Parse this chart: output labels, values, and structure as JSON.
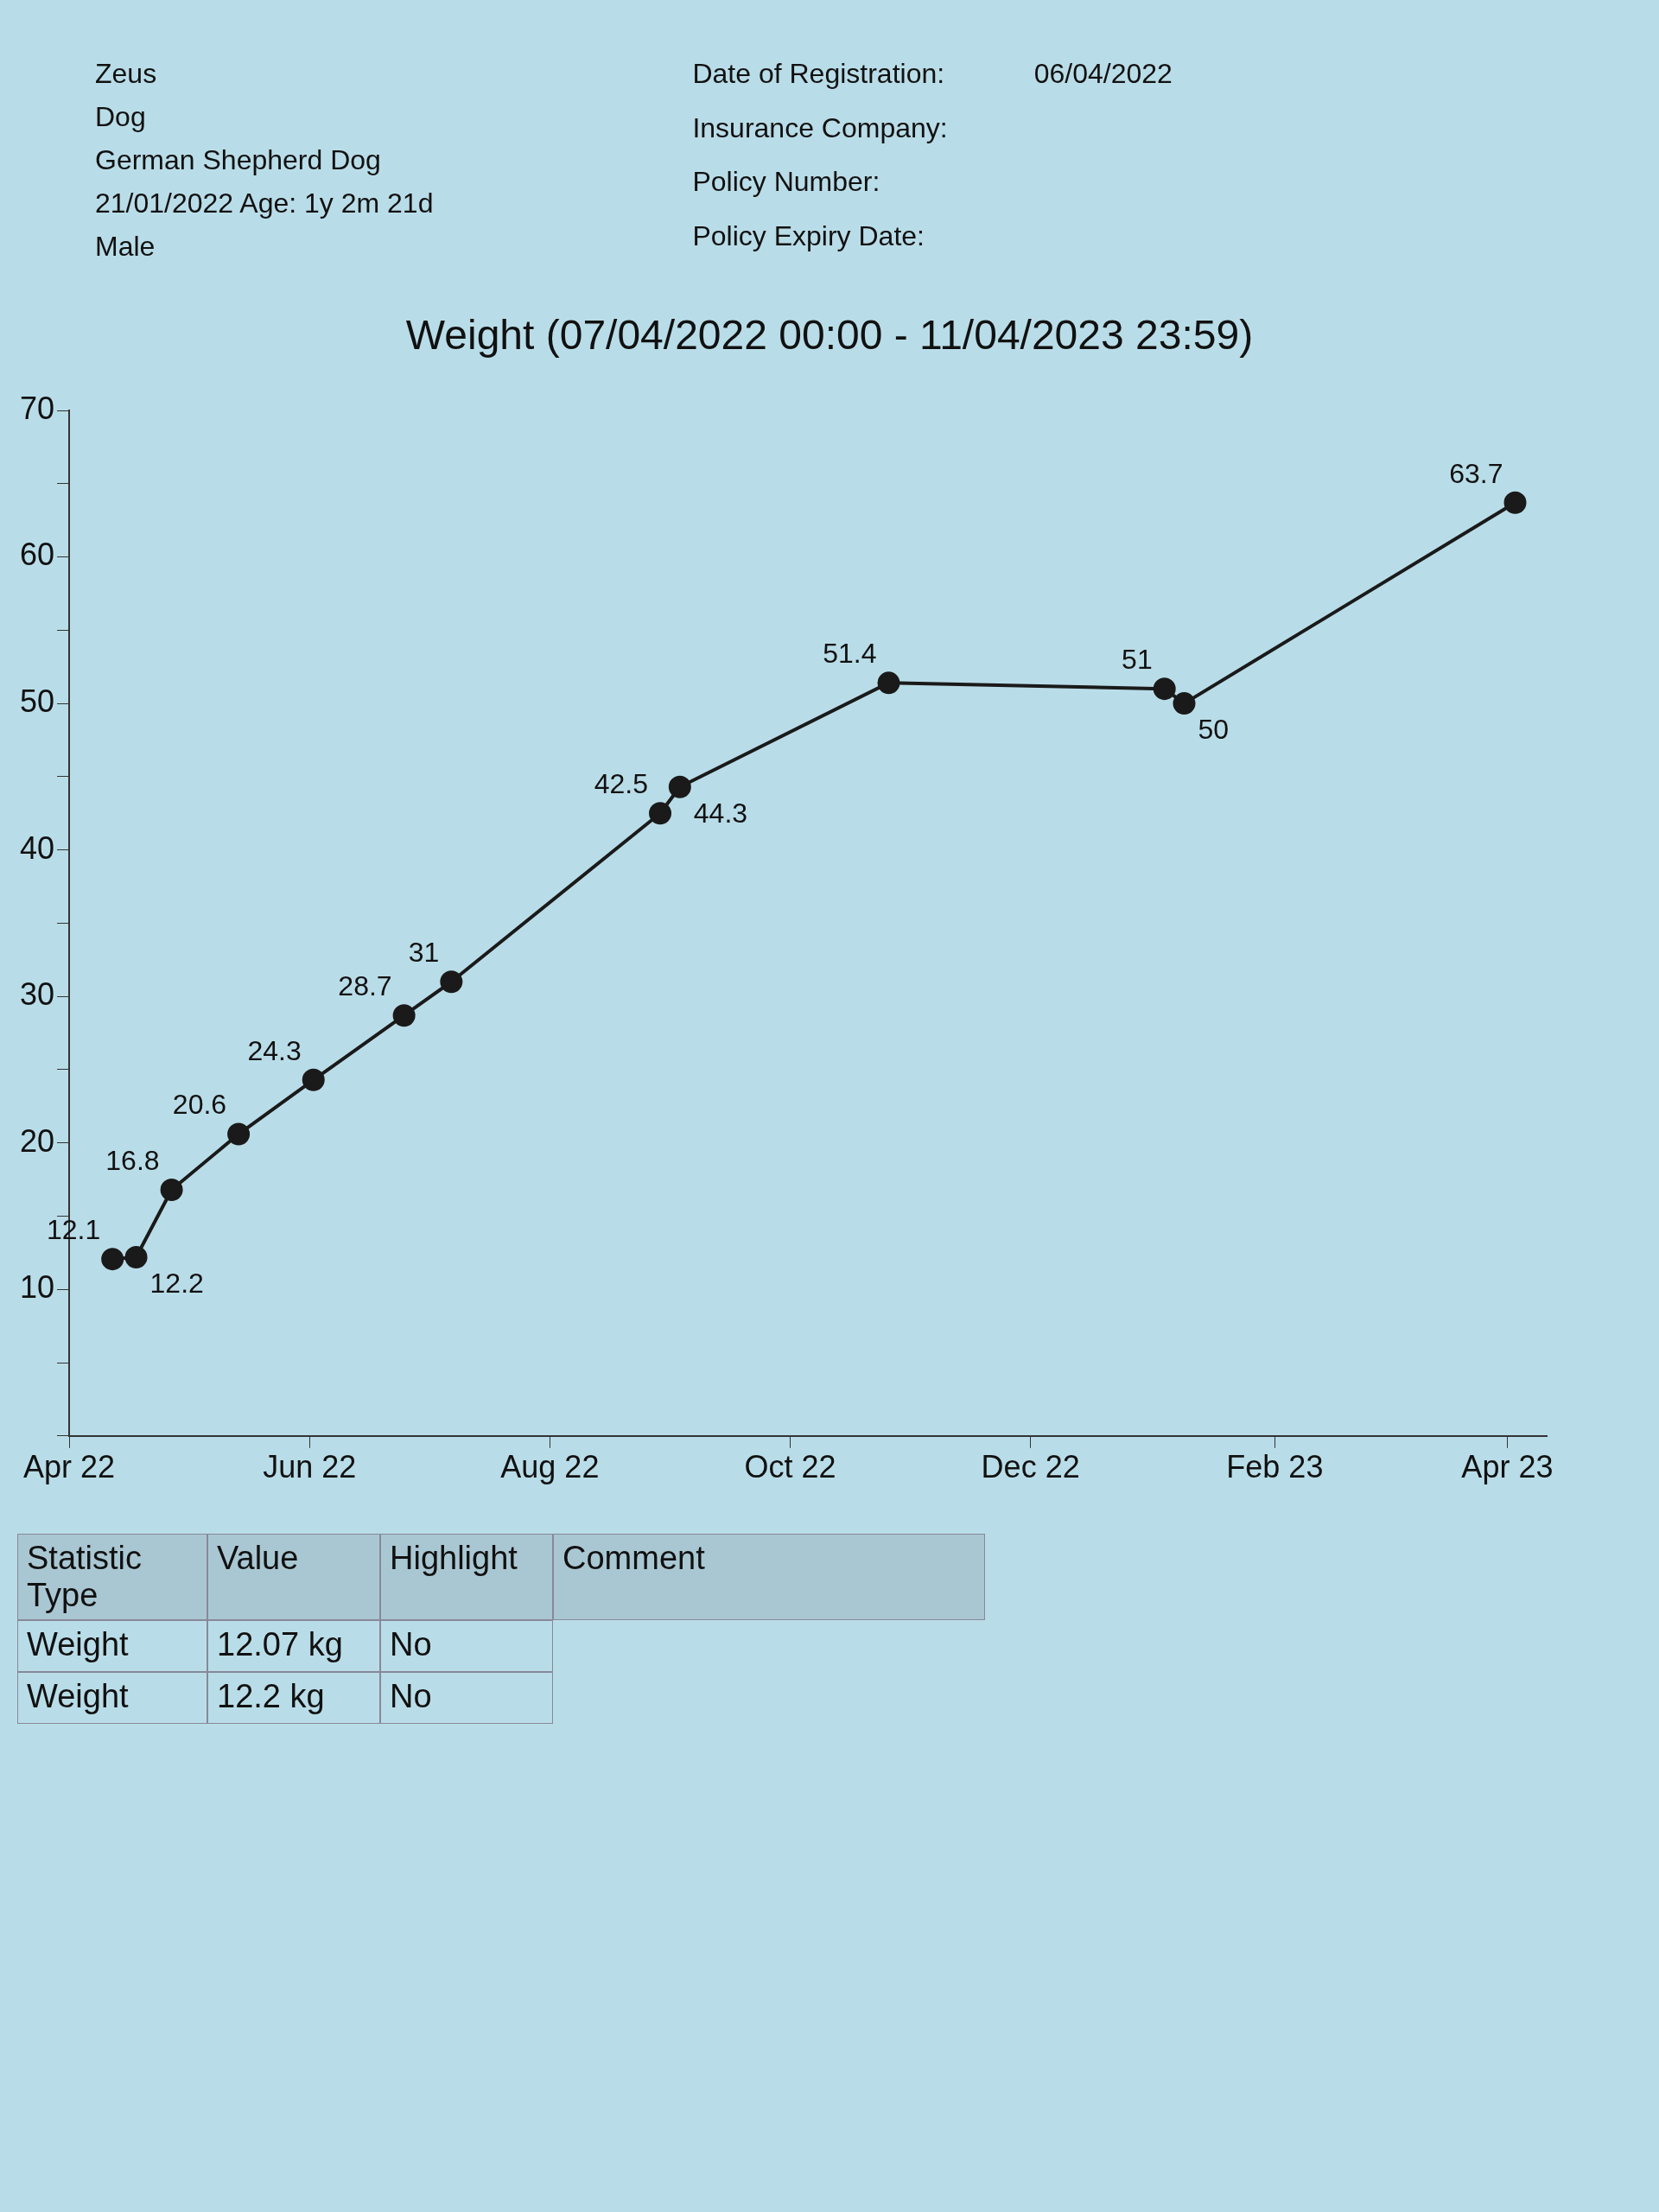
{
  "chart_data": {
    "type": "line",
    "title": "Weight (07/04/2022 00:00 - 11/04/2023 23:59)",
    "x": [
      "2022-04-12",
      "2022-04-18",
      "2022-04-27",
      "2022-05-14",
      "2022-06-02",
      "2022-06-25",
      "2022-07-07",
      "2022-08-29",
      "2022-09-03",
      "2022-10-26",
      "2023-01-04",
      "2023-01-09",
      "2023-04-03"
    ],
    "series": [
      {
        "color": "#1a1a1a",
        "values": [
          12.07,
          12.2,
          16.8,
          20.6,
          24.3,
          28.7,
          31,
          42.5,
          44.3,
          51.4,
          51,
          50,
          63.7
        ],
        "value_labels": [
          "12.1",
          "12.2",
          "16.8",
          "20.6",
          "24.3",
          "28.7",
          "31",
          "42.5",
          "44.3",
          "51.4",
          "51",
          "50",
          "63.7"
        ]
      }
    ],
    "xlim": [
      "2022-04-01",
      "2023-04-11"
    ],
    "xticks": [
      {
        "value": "2022-04-01",
        "label": "Apr 22"
      },
      {
        "value": "2022-06-01",
        "label": "Jun 22"
      },
      {
        "value": "2022-08-01",
        "label": "Aug 22"
      },
      {
        "value": "2022-10-01",
        "label": "Oct 22"
      },
      {
        "value": "2022-12-01",
        "label": "Dec 22"
      },
      {
        "value": "2023-02-01",
        "label": "Feb 23"
      },
      {
        "value": "2023-04-01",
        "label": "Apr 23"
      }
    ],
    "ylim": [
      0,
      70
    ],
    "yticks": [
      {
        "value": 0,
        "label": null
      },
      {
        "value": 5,
        "label": null
      },
      10,
      {
        "value": 15,
        "label": null
      },
      20,
      {
        "value": 25,
        "label": null
      },
      30,
      {
        "value": 35,
        "label": null
      },
      40,
      {
        "value": 45,
        "label": null
      },
      50,
      {
        "value": 55,
        "label": null
      },
      60,
      {
        "value": 65,
        "label": null
      },
      70
    ],
    "marker": "circle",
    "line_style": "solid",
    "grid": false,
    "legend": false,
    "annotations": [
      "Zeus",
      "Dog",
      "German Shepherd Dog",
      "21/01/2022  Age: 1y 2m 21d",
      "Male",
      "Date of Registration:",
      "06/04/2022",
      "Insurance Company:",
      "Policy Number:",
      "Policy Expiry Date:",
      "Statistic Type",
      "Value",
      "Highlight",
      "Comment",
      "Weight",
      "12.07 kg",
      "No",
      "Weight",
      "12.2 kg",
      "No"
    ]
  }
}
